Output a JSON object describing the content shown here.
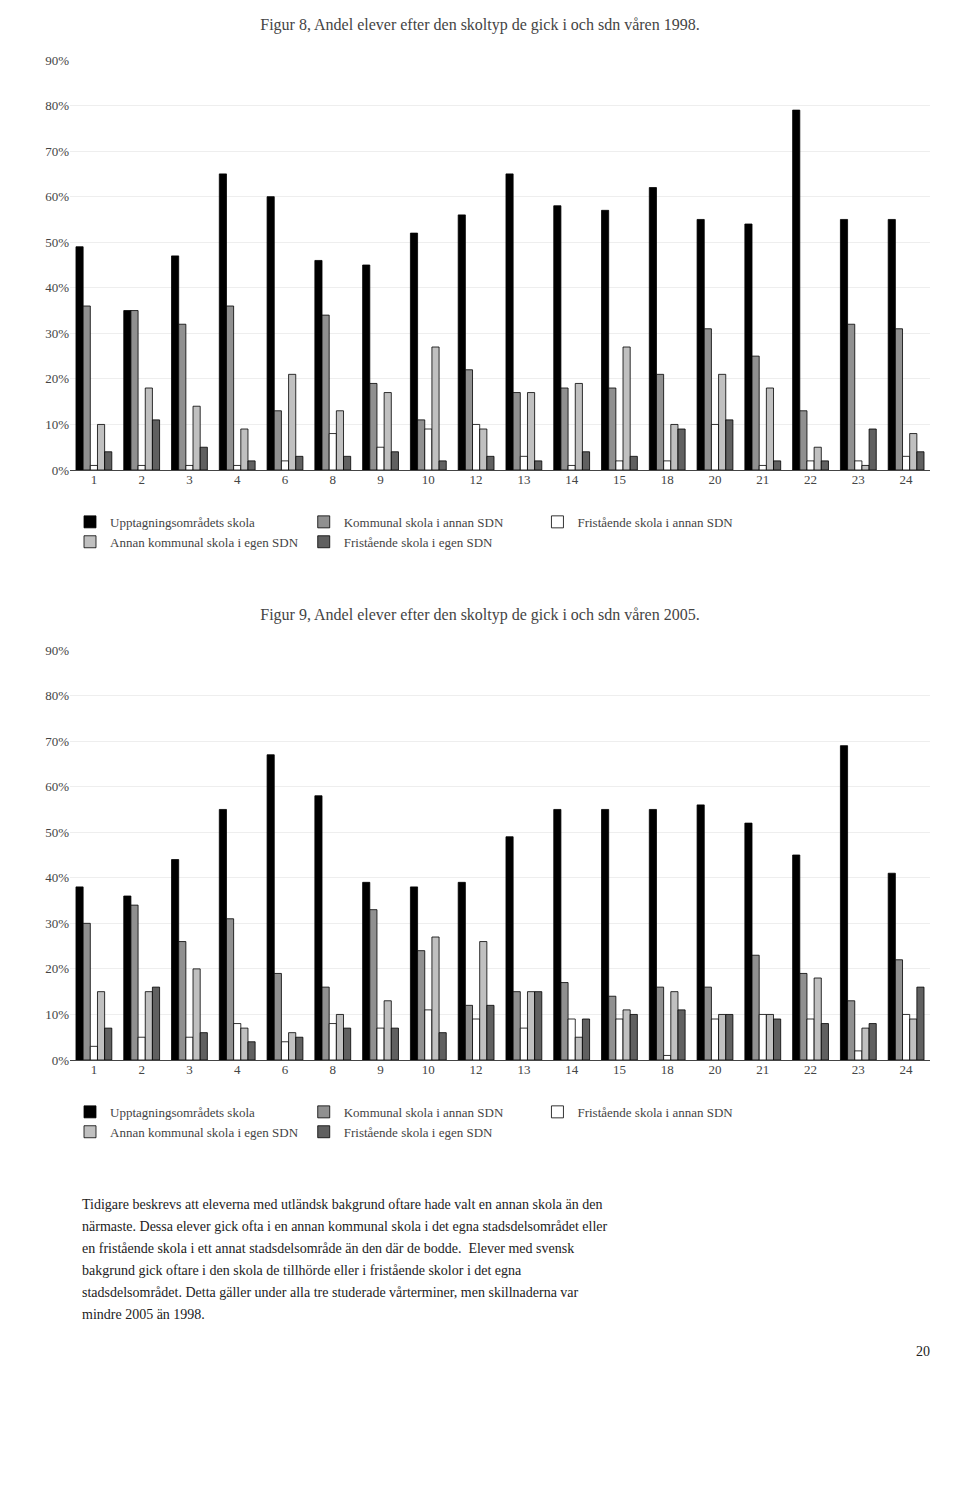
{
  "chart_data": [
    {
      "type": "bar",
      "title": "Figur 8, Andel elever efter den skoltyp de gick i och sdn våren 1998.",
      "categories": [
        1,
        2,
        3,
        4,
        6,
        8,
        9,
        10,
        12,
        13,
        14,
        15,
        18,
        20,
        21,
        22,
        23,
        24
      ],
      "series": [
        {
          "name": "Upptagningsområdets skola",
          "color": "#000000",
          "values": [
            0.49,
            0.35,
            0.47,
            0.65,
            0.6,
            0.46,
            0.45,
            0.52,
            0.56,
            0.65,
            0.58,
            0.57,
            0.62,
            0.55,
            0.54,
            0.79,
            0.55,
            0.55
          ]
        },
        {
          "name": "Kommunal skola i annan SDN",
          "color": "#909090",
          "values": [
            0.36,
            0.35,
            0.32,
            0.36,
            0.13,
            0.34,
            0.19,
            0.11,
            0.22,
            0.17,
            0.18,
            0.18,
            0.21,
            0.31,
            0.25,
            0.13,
            0.32,
            0.31
          ]
        },
        {
          "name": "Fristående skola i annan SDN",
          "color": "#ffffff",
          "values": [
            0.01,
            0.01,
            0.01,
            0.01,
            0.02,
            0.08,
            0.05,
            0.09,
            0.1,
            0.03,
            0.01,
            0.02,
            0.02,
            0.1,
            0.01,
            0.02,
            0.02,
            0.03
          ]
        },
        {
          "name": "Annan kommunal skola i egen SDN",
          "color": "#c0c0c0",
          "values": [
            0.1,
            0.18,
            0.14,
            0.09,
            0.21,
            0.13,
            0.17,
            0.27,
            0.09,
            0.17,
            0.19,
            0.27,
            0.1,
            0.21,
            0.18,
            0.05,
            0.01,
            0.08
          ]
        },
        {
          "name": "Fristående skola i egen SDN",
          "color": "#606060",
          "values": [
            0.04,
            0.11,
            0.05,
            0.02,
            0.03,
            0.03,
            0.04,
            0.02,
            0.03,
            0.02,
            0.04,
            0.03,
            0.09,
            0.11,
            0.02,
            0.02,
            0.09,
            0.04
          ]
        }
      ],
      "ylim": [
        0,
        0.9
      ],
      "yticks": [
        {
          "value": 0,
          "label": "0%"
        },
        {
          "value": 0.1,
          "label": "10%"
        },
        {
          "value": 0.2,
          "label": "20%"
        },
        {
          "value": 0.3,
          "label": "30%"
        },
        {
          "value": 0.4,
          "label": "40%"
        },
        {
          "value": 0.5,
          "label": "50%"
        },
        {
          "value": 0.6,
          "label": "60%"
        },
        {
          "value": 0.7,
          "label": "70%"
        },
        {
          "value": 0.8,
          "label": "80%"
        },
        {
          "value": 0.9,
          "label": "90%"
        }
      ],
      "grid": true,
      "legend": "bottom"
    },
    {
      "type": "bar",
      "title": "Figur 9, Andel elever efter den skoltyp de gick i och sdn våren 2005.",
      "categories": [
        1,
        2,
        3,
        4,
        6,
        8,
        9,
        10,
        12,
        13,
        14,
        15,
        18,
        20,
        21,
        22,
        23,
        24
      ],
      "series": [
        {
          "name": "Upptagningsområdets skola",
          "color": "#000000",
          "values": [
            0.38,
            0.36,
            0.44,
            0.55,
            0.67,
            0.58,
            0.39,
            0.38,
            0.39,
            0.49,
            0.55,
            0.55,
            0.55,
            0.56,
            0.52,
            0.45,
            0.69,
            0.41
          ]
        },
        {
          "name": "Kommunal skola i annan SDN",
          "color": "#909090",
          "values": [
            0.3,
            0.34,
            0.26,
            0.31,
            0.19,
            0.16,
            0.33,
            0.24,
            0.12,
            0.15,
            0.17,
            0.14,
            0.16,
            0.16,
            0.23,
            0.19,
            0.13,
            0.22
          ]
        },
        {
          "name": "Fristående skola i annan SDN",
          "color": "#ffffff",
          "values": [
            0.03,
            0.05,
            0.05,
            0.08,
            0.04,
            0.08,
            0.07,
            0.11,
            0.09,
            0.07,
            0.09,
            0.09,
            0.01,
            0.09,
            0.1,
            0.09,
            0.02,
            0.1
          ]
        },
        {
          "name": "Annan kommunal skola i egen SDN",
          "color": "#c0c0c0",
          "values": [
            0.15,
            0.15,
            0.2,
            0.07,
            0.06,
            0.1,
            0.13,
            0.27,
            0.26,
            0.15,
            0.05,
            0.11,
            0.15,
            0.1,
            0.1,
            0.18,
            0.07,
            0.09
          ]
        },
        {
          "name": "Fristående skola i egen SDN",
          "color": "#606060",
          "values": [
            0.07,
            0.16,
            0.06,
            0.04,
            0.05,
            0.07,
            0.07,
            0.06,
            0.12,
            0.15,
            0.09,
            0.1,
            0.11,
            0.1,
            0.09,
            0.08,
            0.08,
            0.16
          ]
        }
      ],
      "ylim": [
        0,
        0.9
      ],
      "yticks": [
        {
          "value": 0,
          "label": "0%"
        },
        {
          "value": 0.1,
          "label": "10%"
        },
        {
          "value": 0.2,
          "label": "20%"
        },
        {
          "value": 0.3,
          "label": "30%"
        },
        {
          "value": 0.4,
          "label": "40%"
        },
        {
          "value": 0.5,
          "label": "50%"
        },
        {
          "value": 0.6,
          "label": "60%"
        },
        {
          "value": 0.7,
          "label": "70%"
        },
        {
          "value": 0.8,
          "label": "80%"
        },
        {
          "value": 0.9,
          "label": "90%"
        }
      ],
      "grid": true,
      "legend": "bottom",
      "annotations": [
        "Tidigare beskrevs att eleverna med utländsk bakgrund oftare hade valt en annan skola än den",
        "närmaste. Dessa elever gick ofta i en annan kommunal skola i det egna stadsdelsområdet eller",
        "en fristående skola i ett annat stadsdelsområde än den där de bodde.  Elever med svensk",
        "bakgrund gick oftare i den skola de tillhörde eller i fristående skolor i det egna",
        "stadsdelsområdet. Detta gäller under alla tre studerade vårterminer, men skillnaderna var",
        "mindre 2005 än 1998.",
        "20"
      ]
    }
  ]
}
